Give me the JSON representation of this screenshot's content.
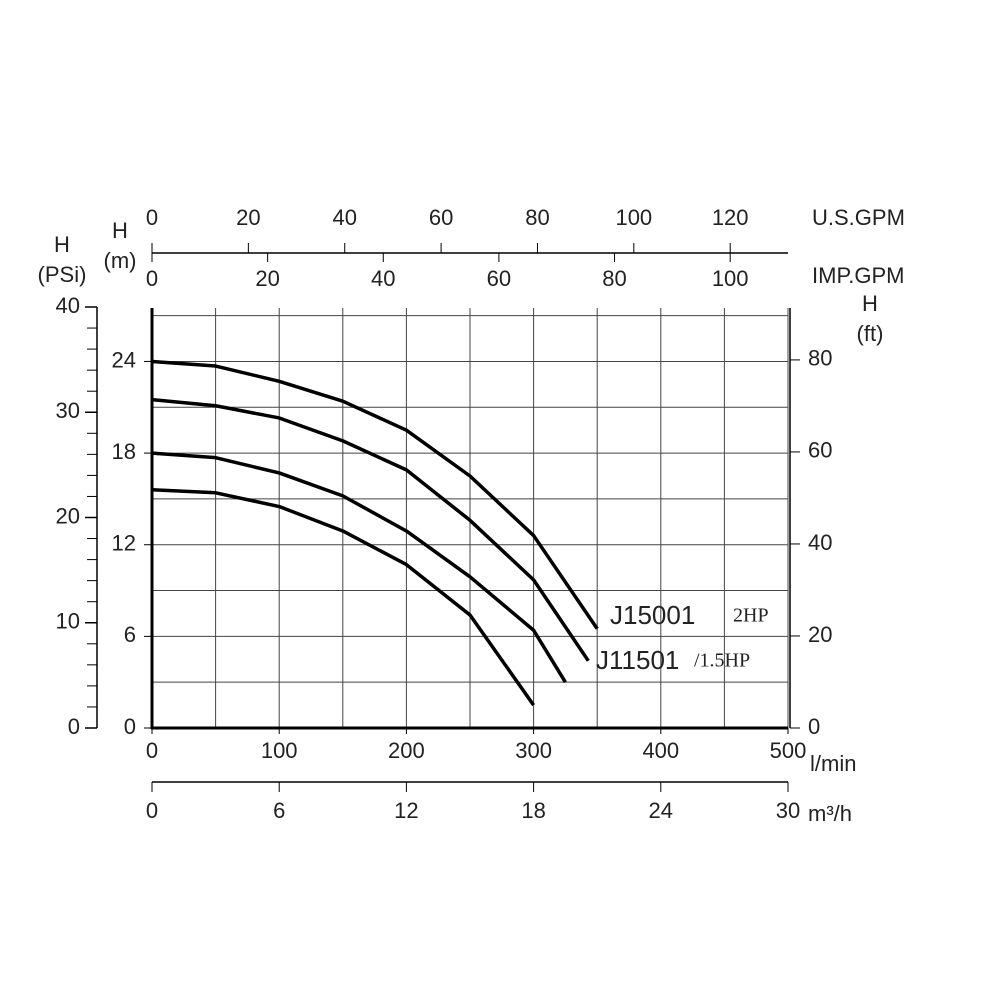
{
  "chart_data": {
    "type": "line",
    "xlim": [
      0,
      500
    ],
    "xticks": [
      0,
      100,
      200,
      300,
      400,
      500
    ],
    "xgrid": [
      0,
      50,
      100,
      150,
      200,
      250,
      300,
      350,
      400,
      450,
      500
    ],
    "xlabel": "l/min",
    "ylim": [
      0,
      27.5
    ],
    "yticks": [
      0,
      6,
      12,
      18,
      24
    ],
    "ygrid": [
      0,
      3,
      6,
      9,
      12,
      15,
      18,
      21,
      24,
      27
    ],
    "ylabel": [
      "H",
      "(m)"
    ],
    "grid": true,
    "extra_axes": [
      {
        "side": "left-outer",
        "label": [
          "H",
          "(PSi)"
        ],
        "lim": [
          0,
          40
        ],
        "ticks": [
          0,
          10,
          20,
          30,
          40
        ],
        "minor_ticks": [
          0,
          2,
          4,
          6,
          8,
          10,
          12,
          14,
          16,
          18,
          20,
          22,
          24,
          26,
          28,
          30,
          32,
          34,
          36,
          38,
          40
        ]
      },
      {
        "side": "right",
        "label": [
          "H",
          "(ft)"
        ],
        "lim": [
          0,
          91.5
        ],
        "ticks": [
          0,
          20,
          40,
          60,
          80
        ]
      },
      {
        "side": "top",
        "label": [
          "U.S.GPM"
        ],
        "lim": [
          0,
          132
        ],
        "ticks": [
          0,
          20,
          40,
          60,
          80,
          100,
          120
        ]
      },
      {
        "side": "top-inner",
        "label": [
          "IMP.GPM"
        ],
        "lim": [
          0,
          110
        ],
        "ticks": [
          0,
          20,
          40,
          60,
          80,
          100
        ]
      },
      {
        "side": "bottom-outer",
        "label": [
          "m³/h"
        ],
        "lim": [
          0,
          30
        ],
        "ticks": [
          0,
          6,
          12,
          18,
          24,
          30
        ]
      }
    ],
    "series": [
      {
        "color": "#000000",
        "x": [
          0,
          50,
          100,
          150,
          200,
          250,
          300,
          350
        ],
        "values": [
          24,
          23.7,
          22.7,
          21.4,
          19.5,
          16.5,
          12.6,
          6.5
        ]
      },
      {
        "color": "#000000",
        "x": [
          0,
          50,
          100,
          150,
          200,
          250,
          300,
          343
        ],
        "values": [
          21.5,
          21.1,
          20.3,
          18.8,
          16.9,
          13.6,
          9.7,
          4.4
        ]
      },
      {
        "color": "#000000",
        "x": [
          0,
          50,
          100,
          150,
          200,
          250,
          300,
          325
        ],
        "values": [
          18,
          17.7,
          16.7,
          15.2,
          12.9,
          9.9,
          6.4,
          3.0
        ]
      },
      {
        "color": "#000000",
        "x": [
          0,
          50,
          100,
          150,
          200,
          250,
          300
        ],
        "values": [
          15.6,
          15.4,
          14.5,
          12.9,
          10.7,
          7.4,
          1.5
        ]
      }
    ],
    "annotations": [
      {
        "model": "J15001",
        "power": "2HP"
      },
      {
        "model": "J11501",
        "power": "/1.5HP"
      }
    ]
  }
}
